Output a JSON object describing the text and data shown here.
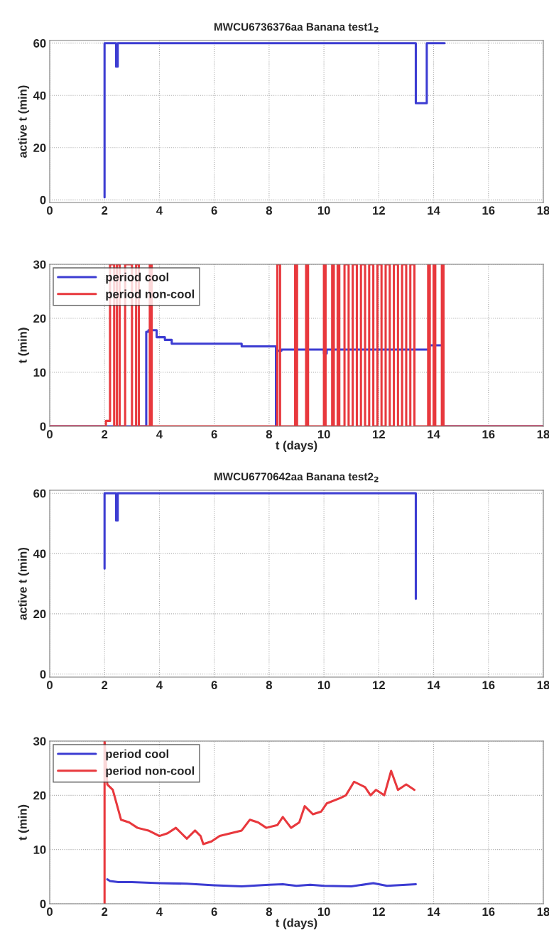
{
  "chart_data": [
    {
      "type": "line",
      "title": "MWCU6736376aa Banana test1$_{2}$",
      "ylabel": "active t (min)",
      "xlim": [
        0,
        18
      ],
      "ylim": [
        -1,
        61
      ],
      "xticks": [
        0,
        2,
        4,
        6,
        8,
        10,
        12,
        14,
        16,
        18
      ],
      "yticks": [
        0,
        20,
        40,
        60
      ],
      "grid": true,
      "legend": false,
      "line_style": "solid",
      "series": [
        {
          "color": "#3c3cd2",
          "x": [
            2.0,
            2.0,
            2.42,
            2.42,
            2.48,
            2.48,
            13.35,
            13.35,
            13.75,
            13.75,
            14.4
          ],
          "values": [
            1,
            60,
            60,
            51,
            51,
            60,
            60,
            37,
            37,
            60,
            60
          ]
        }
      ]
    },
    {
      "type": "line",
      "xlabel": "t (days)",
      "ylabel": "t (min)",
      "xlim": [
        0,
        18
      ],
      "ylim": [
        0,
        30
      ],
      "xticks": [
        0,
        2,
        4,
        6,
        8,
        10,
        12,
        14,
        16,
        18
      ],
      "yticks": [
        0,
        10,
        20,
        30
      ],
      "grid": true,
      "legend": "top left",
      "line_style": "solid",
      "series": [
        {
          "name": "period cool",
          "color": "#3c3cd2",
          "x": [
            0,
            3.52,
            3.52,
            3.6,
            3.6,
            3.9,
            3.9,
            4.2,
            4.2,
            4.45,
            4.45,
            7.0,
            7.0,
            8.25,
            8.25,
            8.3,
            8.3,
            8.45,
            8.45,
            10.0,
            10.0,
            10.1,
            10.1,
            13.85,
            13.85,
            14.35,
            14.35,
            18
          ],
          "values": [
            0,
            0,
            17.5,
            17.5,
            17.8,
            17.8,
            16.5,
            16.5,
            16,
            16,
            15.3,
            15.3,
            14.8,
            14.8,
            0,
            0,
            14,
            14,
            14.2,
            14.2,
            13.5,
            13.5,
            14.2,
            14.2,
            15,
            15,
            0,
            0
          ]
        },
        {
          "name": "period non-cool",
          "color": "#e8383d",
          "x": [
            0,
            2.05,
            2.05,
            2.2,
            2.2,
            2.35,
            2.35,
            2.45,
            2.45,
            2.55,
            2.55,
            2.75,
            2.75,
            3.0,
            3.0,
            3.15,
            3.15,
            3.25,
            3.25,
            3.65,
            3.65,
            3.72,
            3.72,
            8.3,
            8.3,
            8.4,
            8.4,
            8.95,
            8.95,
            9.02,
            9.02,
            9.35,
            9.35,
            9.42,
            9.42,
            10.0,
            10.0,
            10.06,
            10.06,
            10.3,
            10.3,
            10.36,
            10.36,
            10.5,
            10.5,
            10.56,
            10.56,
            10.75,
            10.75,
            10.9,
            10.9,
            11.05,
            11.05,
            11.2,
            11.2,
            11.35,
            11.35,
            11.5,
            11.5,
            11.65,
            11.65,
            11.8,
            11.8,
            11.95,
            11.95,
            12.1,
            12.1,
            12.25,
            12.25,
            12.4,
            12.4,
            12.55,
            12.55,
            12.7,
            12.7,
            12.85,
            12.85,
            13.0,
            13.0,
            13.15,
            13.15,
            13.3,
            13.3,
            13.8,
            13.8,
            13.86,
            13.86,
            14.0,
            14.0,
            14.06,
            14.06,
            14.3,
            14.3,
            14.36,
            14.36,
            18
          ],
          "values": [
            0,
            0,
            1,
            1,
            30,
            30,
            0,
            0,
            30,
            30,
            0,
            0,
            30,
            30,
            0,
            0,
            30,
            30,
            0,
            0,
            30,
            30,
            0,
            0,
            30,
            30,
            0,
            0,
            30,
            30,
            0,
            0,
            30,
            30,
            0,
            0,
            30,
            30,
            0,
            0,
            30,
            30,
            0,
            0,
            30,
            30,
            0,
            0,
            30,
            30,
            0,
            0,
            30,
            30,
            0,
            0,
            30,
            30,
            0,
            0,
            30,
            30,
            0,
            0,
            30,
            30,
            0,
            0,
            30,
            30,
            0,
            0,
            30,
            30,
            0,
            0,
            30,
            30,
            0,
            0,
            30,
            30,
            0,
            0,
            30,
            30,
            0,
            0,
            30,
            30,
            0,
            0,
            30,
            30,
            0,
            0
          ]
        }
      ]
    },
    {
      "type": "line",
      "title": "MWCU6770642aa Banana test2$_{2}$",
      "ylabel": "active t (min)",
      "xlim": [
        0,
        18
      ],
      "ylim": [
        -1,
        61
      ],
      "xticks": [
        0,
        2,
        4,
        6,
        8,
        10,
        12,
        14,
        16,
        18
      ],
      "yticks": [
        0,
        20,
        40,
        60
      ],
      "grid": true,
      "legend": false,
      "line_style": "solid",
      "series": [
        {
          "color": "#3c3cd2",
          "x": [
            2.0,
            2.0,
            2.42,
            2.42,
            2.48,
            2.48,
            13.35,
            13.35
          ],
          "values": [
            35,
            60,
            60,
            51,
            51,
            60,
            60,
            25
          ]
        }
      ]
    },
    {
      "type": "line",
      "xlabel": "t (days)",
      "ylabel": "t (min)",
      "xlim": [
        0,
        18
      ],
      "ylim": [
        0,
        30
      ],
      "xticks": [
        0,
        2,
        4,
        6,
        8,
        10,
        12,
        14,
        16,
        18
      ],
      "yticks": [
        0,
        10,
        20,
        30
      ],
      "grid": true,
      "legend": "top left",
      "line_style": "solid",
      "series": [
        {
          "name": "period cool",
          "color": "#3c3cd2",
          "x": [
            2.1,
            2.2,
            2.5,
            3.0,
            4.0,
            5.0,
            6.0,
            7.0,
            8.0,
            8.5,
            9.0,
            9.5,
            10.0,
            11.0,
            11.8,
            12.3,
            13.35
          ],
          "values": [
            4.5,
            4.2,
            4.0,
            4.0,
            3.8,
            3.7,
            3.4,
            3.2,
            3.5,
            3.6,
            3.3,
            3.5,
            3.3,
            3.2,
            3.8,
            3.3,
            3.6
          ]
        },
        {
          "name": "period non-cool",
          "color": "#e8383d",
          "x": [
            2.0,
            2.0,
            2.1,
            2.3,
            2.6,
            2.9,
            3.2,
            3.6,
            4.0,
            4.3,
            4.6,
            4.8,
            5.0,
            5.3,
            5.5,
            5.6,
            5.9,
            6.2,
            6.6,
            7.0,
            7.3,
            7.6,
            7.9,
            8.3,
            8.5,
            8.8,
            9.1,
            9.3,
            9.6,
            9.9,
            10.1,
            10.6,
            10.8,
            11.1,
            11.5,
            11.7,
            11.9,
            12.2,
            12.45,
            12.7,
            13.0,
            13.3
          ],
          "values": [
            0,
            30,
            22,
            21,
            15.5,
            15,
            14,
            13.5,
            12.5,
            13,
            14,
            13,
            12,
            13.5,
            12.5,
            11,
            11.5,
            12.5,
            13,
            13.5,
            15.5,
            15,
            14,
            14.5,
            16,
            14,
            15,
            18,
            16.5,
            17,
            18.5,
            19.5,
            20,
            22.5,
            21.5,
            20,
            21,
            20,
            24.5,
            21,
            22,
            21
          ]
        }
      ]
    }
  ]
}
